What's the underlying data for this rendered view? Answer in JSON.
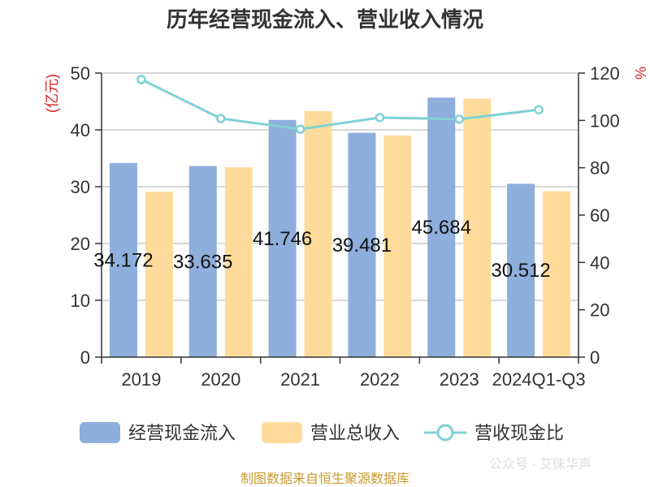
{
  "title": "历年经营现金流入、营业收入情况",
  "footer": "制图数据来自恒生聚源数据库",
  "watermark": "公众号 · 艾徕华声",
  "chart_data": {
    "type": "bar",
    "categories": [
      "2019",
      "2020",
      "2021",
      "2022",
      "2023",
      "2024Q1-Q3"
    ],
    "series": [
      {
        "name": "经营现金流入",
        "type": "bar",
        "axis": "left",
        "color": "#8eaedb",
        "values": [
          34.172,
          33.635,
          41.746,
          39.481,
          45.684,
          30.512
        ],
        "labels": [
          "34.172",
          "33.635",
          "41.746",
          "39.481",
          "45.684",
          "30.512"
        ]
      },
      {
        "name": "营业总收入",
        "type": "bar",
        "axis": "left",
        "color": "#fedb9b",
        "values": [
          29.1,
          33.4,
          43.3,
          39.0,
          45.5,
          29.2
        ]
      },
      {
        "name": "营收现金比",
        "type": "line",
        "axis": "right",
        "color": "#7fd1d3",
        "values": [
          117.3,
          100.8,
          96.3,
          101.2,
          100.5,
          104.5
        ]
      }
    ],
    "y_left": {
      "label": "(亿元)",
      "min": 0,
      "max": 50,
      "ticks": [
        0,
        10,
        20,
        30,
        40,
        50
      ]
    },
    "y_right": {
      "label": "%",
      "min": 0,
      "max": 120,
      "ticks": [
        0,
        20,
        40,
        60,
        80,
        100,
        120
      ]
    },
    "grid": true,
    "legend_position": "bottom"
  }
}
